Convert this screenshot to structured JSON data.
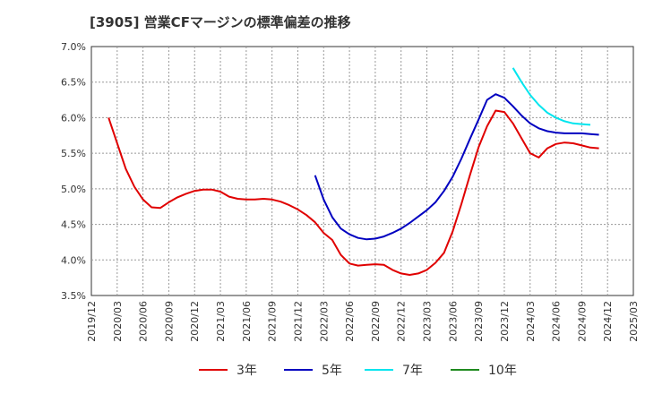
{
  "chart_data": {
    "type": "line",
    "title": "[3905]  営業CFマージンの標準偏差の推移",
    "xlabel": "",
    "ylabel": "",
    "x_ticks": [
      "2019/12",
      "2020/03",
      "2020/06",
      "2020/09",
      "2020/12",
      "2021/03",
      "2021/06",
      "2021/09",
      "2021/12",
      "2022/03",
      "2022/06",
      "2022/09",
      "2022/12",
      "2023/03",
      "2023/06",
      "2023/09",
      "2023/12",
      "2024/03",
      "2024/06",
      "2024/09",
      "2024/12",
      "2025/03"
    ],
    "y_ticks": [
      "3.5%",
      "4.0%",
      "4.5%",
      "5.0%",
      "5.5%",
      "6.0%",
      "6.5%",
      "7.0%"
    ],
    "ylim": [
      3.5,
      7.0
    ],
    "grid": true,
    "legend_position": "bottom",
    "series": [
      {
        "name": "3年",
        "color": "#e00000",
        "points": [
          [
            "2020/02",
            6.0
          ],
          [
            "2020/03",
            5.64
          ],
          [
            "2020/04",
            5.28
          ],
          [
            "2020/05",
            5.03
          ],
          [
            "2020/06",
            4.85
          ],
          [
            "2020/07",
            4.74
          ],
          [
            "2020/08",
            4.73
          ],
          [
            "2020/09",
            4.81
          ],
          [
            "2020/10",
            4.88
          ],
          [
            "2020/11",
            4.93
          ],
          [
            "2020/12",
            4.97
          ],
          [
            "2021/01",
            4.99
          ],
          [
            "2021/02",
            4.99
          ],
          [
            "2021/03",
            4.96
          ],
          [
            "2021/04",
            4.89
          ],
          [
            "2021/05",
            4.86
          ],
          [
            "2021/06",
            4.85
          ],
          [
            "2021/07",
            4.85
          ],
          [
            "2021/08",
            4.86
          ],
          [
            "2021/09",
            4.85
          ],
          [
            "2021/10",
            4.82
          ],
          [
            "2021/11",
            4.77
          ],
          [
            "2021/12",
            4.71
          ],
          [
            "2022/01",
            4.63
          ],
          [
            "2022/02",
            4.53
          ],
          [
            "2022/03",
            4.38
          ],
          [
            "2022/04",
            4.28
          ],
          [
            "2022/05",
            4.07
          ],
          [
            "2022/06",
            3.95
          ],
          [
            "2022/07",
            3.92
          ],
          [
            "2022/08",
            3.93
          ],
          [
            "2022/09",
            3.94
          ],
          [
            "2022/10",
            3.93
          ],
          [
            "2022/11",
            3.86
          ],
          [
            "2022/12",
            3.81
          ],
          [
            "2023/01",
            3.79
          ],
          [
            "2023/02",
            3.81
          ],
          [
            "2023/03",
            3.86
          ],
          [
            "2023/04",
            3.96
          ],
          [
            "2023/05",
            4.1
          ],
          [
            "2023/06",
            4.4
          ],
          [
            "2023/07",
            4.78
          ],
          [
            "2023/08",
            5.19
          ],
          [
            "2023/09",
            5.58
          ],
          [
            "2023/10",
            5.88
          ],
          [
            "2023/11",
            6.1
          ],
          [
            "2023/12",
            6.08
          ],
          [
            "2024/01",
            5.92
          ],
          [
            "2024/02",
            5.71
          ],
          [
            "2024/03",
            5.5
          ],
          [
            "2024/04",
            5.44
          ],
          [
            "2024/05",
            5.57
          ],
          [
            "2024/06",
            5.63
          ],
          [
            "2024/07",
            5.65
          ],
          [
            "2024/08",
            5.64
          ],
          [
            "2024/09",
            5.61
          ],
          [
            "2024/10",
            5.58
          ],
          [
            "2024/11",
            5.57
          ]
        ]
      },
      {
        "name": "5年",
        "color": "#0000c0",
        "points": [
          [
            "2022/02",
            5.19
          ],
          [
            "2022/03",
            4.85
          ],
          [
            "2022/04",
            4.6
          ],
          [
            "2022/05",
            4.44
          ],
          [
            "2022/06",
            4.36
          ],
          [
            "2022/07",
            4.31
          ],
          [
            "2022/08",
            4.29
          ],
          [
            "2022/09",
            4.3
          ],
          [
            "2022/10",
            4.33
          ],
          [
            "2022/11",
            4.38
          ],
          [
            "2022/12",
            4.44
          ],
          [
            "2023/01",
            4.52
          ],
          [
            "2023/02",
            4.61
          ],
          [
            "2023/03",
            4.7
          ],
          [
            "2023/04",
            4.81
          ],
          [
            "2023/05",
            4.97
          ],
          [
            "2023/06",
            5.17
          ],
          [
            "2023/07",
            5.42
          ],
          [
            "2023/08",
            5.7
          ],
          [
            "2023/09",
            5.97
          ],
          [
            "2023/10",
            6.25
          ],
          [
            "2023/11",
            6.33
          ],
          [
            "2023/12",
            6.28
          ],
          [
            "2024/01",
            6.16
          ],
          [
            "2024/02",
            6.03
          ],
          [
            "2024/03",
            5.92
          ],
          [
            "2024/04",
            5.85
          ],
          [
            "2024/05",
            5.81
          ],
          [
            "2024/06",
            5.79
          ],
          [
            "2024/07",
            5.78
          ],
          [
            "2024/08",
            5.78
          ],
          [
            "2024/09",
            5.78
          ],
          [
            "2024/10",
            5.77
          ],
          [
            "2024/11",
            5.76
          ]
        ]
      },
      {
        "name": "7年",
        "color": "#00e5ee",
        "points": [
          [
            "2024/01",
            6.7
          ],
          [
            "2024/02",
            6.5
          ],
          [
            "2024/03",
            6.32
          ],
          [
            "2024/04",
            6.18
          ],
          [
            "2024/05",
            6.07
          ],
          [
            "2024/06",
            6.0
          ],
          [
            "2024/07",
            5.95
          ],
          [
            "2024/08",
            5.92
          ],
          [
            "2024/09",
            5.91
          ],
          [
            "2024/10",
            5.9
          ]
        ]
      },
      {
        "name": "10年",
        "color": "#1f8a1f",
        "points": []
      }
    ]
  }
}
